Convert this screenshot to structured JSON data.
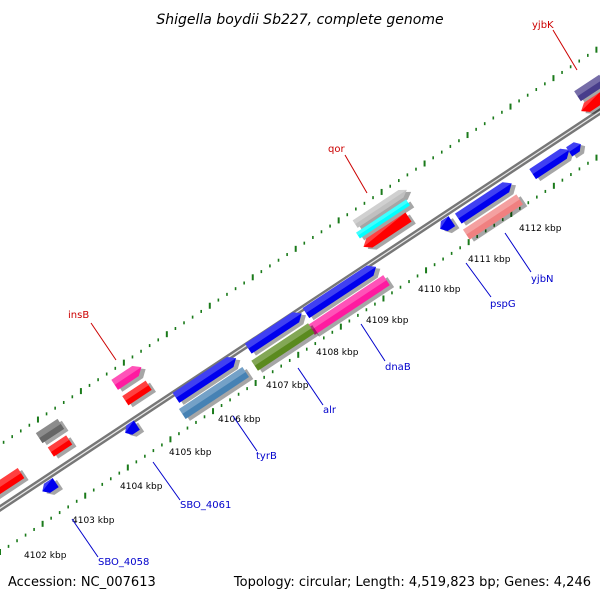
{
  "title": "Shigella boydii Sb227, complete genome",
  "footer": {
    "accession": "Accession: NC_007613",
    "summary": "Topology: circular; Length: 4,519,823 bp; Genes: 4,246"
  },
  "kbp_ticks": [
    "4102 kbp",
    "4103 kbp",
    "4104 kbp",
    "4105 kbp",
    "4106 kbp",
    "4107 kbp",
    "4108 kbp",
    "4109 kbp",
    "4110 kbp",
    "4111 kbp",
    "4112 kbp"
  ],
  "labels": [
    {
      "text": "yjbK",
      "color": "#cc0000"
    },
    {
      "text": "qor",
      "color": "#cc0000"
    },
    {
      "text": "insB",
      "color": "#cc0000"
    },
    {
      "text": "yjbN",
      "color": "#0000cc"
    },
    {
      "text": "pspG",
      "color": "#0000cc"
    },
    {
      "text": "dnaB",
      "color": "#0000cc"
    },
    {
      "text": "alr",
      "color": "#0000cc"
    },
    {
      "text": "tyrB",
      "color": "#0000cc"
    },
    {
      "text": "SBO_4061",
      "color": "#0000cc"
    },
    {
      "text": "SBO_4058",
      "color": "#0000cc"
    }
  ],
  "colors": {
    "backbone": "#888888",
    "dots": "#1a7a1a",
    "blue": "#0000ee",
    "red": "#ff0000",
    "pink": "#ff1aa0",
    "steel": "#4682b4",
    "olive": "#5a8a1e",
    "grey": "#666666",
    "silver": "#c0c0c0",
    "cyan": "#00ffff",
    "salmon": "#f08080",
    "navy": "#483d8b"
  }
}
